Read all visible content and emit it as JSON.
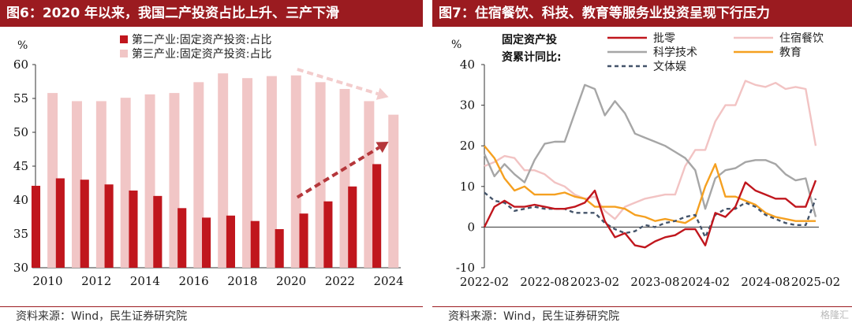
{
  "left": {
    "title": "图6：2020 年以来，我国二产投资占比上升、三产下滑",
    "source": "资料来源：Wind，民生证券研究院"
  },
  "right": {
    "title": "图7：住宿餐饮、科技、教育等服务业投资呈现下行压力",
    "source": "资料来源：Wind，民生证券研究院",
    "legend_title_line1": "固定资产投",
    "legend_title_line2": "资累计同比:"
  },
  "watermark": "格隆汇",
  "chart_data": [
    {
      "type": "bar",
      "unit_label": "%",
      "categories": [
        "2010",
        "2011",
        "2012",
        "2013",
        "2014",
        "2015",
        "2016",
        "2017",
        "2018",
        "2019",
        "2020",
        "2021",
        "2022",
        "2023",
        "2024"
      ],
      "x_tick_labels": [
        "2010",
        "2012",
        "2014",
        "2016",
        "2018",
        "2020",
        "2022",
        "2024"
      ],
      "ylim": [
        30,
        60
      ],
      "y_ticks": [
        30,
        35,
        40,
        45,
        50,
        55,
        60
      ],
      "grid": false,
      "legend_position": "top",
      "series": [
        {
          "name": "第二产业:固定资产投资:占比",
          "color": "#c0161d",
          "values": [
            42.1,
            43.2,
            43.0,
            42.3,
            41.4,
            40.6,
            38.8,
            37.4,
            37.7,
            36.9,
            35.7,
            38.0,
            39.8,
            42.0,
            45.3
          ]
        },
        {
          "name": "第三产业:固定资产投资:占比",
          "color": "#f1c6c6",
          "values": [
            55.8,
            54.6,
            54.6,
            55.1,
            55.6,
            55.8,
            57.4,
            58.7,
            58.0,
            58.3,
            58.4,
            57.4,
            56.4,
            54.6,
            52.6
          ]
        }
      ],
      "annotations": [
        {
          "type": "dashed-arrow",
          "from": [
            "2020",
            59.3
          ],
          "to": [
            "2024",
            55.2
          ],
          "color": "#f3cccc"
        },
        {
          "type": "dashed-arrow",
          "from": [
            "2020",
            40.4
          ],
          "to": [
            "2024",
            48.6
          ],
          "color": "#b5373b"
        }
      ]
    },
    {
      "type": "line",
      "unit_label": "%",
      "x": [
        "2022-02",
        "2022-03",
        "2022-04",
        "2022-05",
        "2022-06",
        "2022-07",
        "2022-08",
        "2022-09",
        "2022-10",
        "2022-11",
        "2022-12",
        "2023-02",
        "2023-03",
        "2023-04",
        "2023-05",
        "2023-06",
        "2023-07",
        "2023-08",
        "2023-09",
        "2023-10",
        "2023-11",
        "2023-12",
        "2024-02",
        "2024-03",
        "2024-04",
        "2024-05",
        "2024-06",
        "2024-07",
        "2024-08",
        "2024-09",
        "2024-10",
        "2024-11",
        "2024-12",
        "2025-02"
      ],
      "x_tick_labels": [
        "2022-02",
        "2022-08",
        "2023-02",
        "2023-08",
        "2024-02",
        "2024-08",
        "2025-02"
      ],
      "ylim": [
        -10,
        40
      ],
      "y_ticks": [
        -10,
        0,
        10,
        20,
        30,
        40
      ],
      "grid": false,
      "legend_position": "top",
      "series": [
        {
          "name": "批零",
          "color": "#c0161d",
          "dash": "",
          "values": [
            0,
            5,
            6.5,
            5,
            5,
            5.5,
            5,
            4.5,
            4.5,
            5,
            6,
            9,
            1.5,
            -2.5,
            -1.5,
            -4.5,
            -5,
            -3.5,
            -2.5,
            -2,
            -0.5,
            -0.5,
            -4.5,
            3.5,
            2.5,
            5,
            11,
            9,
            8,
            7,
            7,
            5,
            5,
            11.5
          ]
        },
        {
          "name": "住宿餐饮",
          "color": "#f2c3c3",
          "dash": "",
          "values": [
            15,
            16,
            17.5,
            17,
            14,
            14,
            13,
            11,
            10,
            8,
            7,
            7.5,
            4,
            2,
            5,
            6,
            7,
            7.5,
            8,
            8,
            15,
            19,
            19,
            26,
            30,
            30,
            36,
            35,
            34.5,
            35.5,
            34,
            34.5,
            34,
            20
          ]
        },
        {
          "name": "科学技术",
          "color": "#a6a6a6",
          "dash": "",
          "values": [
            18,
            12.5,
            15.5,
            13,
            11,
            16.5,
            20.5,
            21,
            21,
            28,
            35,
            34,
            27.5,
            31,
            28,
            23,
            22,
            21,
            20,
            18.5,
            17,
            14,
            4.5,
            12,
            14,
            14.5,
            16,
            16.5,
            16.5,
            15.5,
            13,
            11.5,
            12,
            2.5
          ]
        },
        {
          "name": "教育",
          "color": "#f5a020",
          "dash": "",
          "values": [
            20,
            17,
            12,
            9,
            10,
            8,
            8,
            8,
            8.5,
            7.5,
            7,
            5,
            5,
            5,
            4.5,
            3,
            2.5,
            1.5,
            2,
            1.5,
            1,
            2.5,
            10,
            15.5,
            7.5,
            7.5,
            6.5,
            5.5,
            3.5,
            2.5,
            2,
            1.5,
            1.5,
            1.5
          ]
        },
        {
          "name": "文体娱",
          "color": "#44546a",
          "dash": "5,4",
          "values": [
            8.5,
            6.5,
            6,
            4,
            4.5,
            5,
            4.5,
            4.5,
            4.5,
            3.5,
            3.5,
            3.5,
            1,
            -0.5,
            -1.5,
            -1,
            0.5,
            0,
            1,
            1.5,
            2.5,
            3,
            -2.5,
            3,
            4.5,
            4.5,
            6,
            5,
            3,
            2,
            1,
            0.5,
            0.5,
            7
          ]
        }
      ]
    }
  ]
}
